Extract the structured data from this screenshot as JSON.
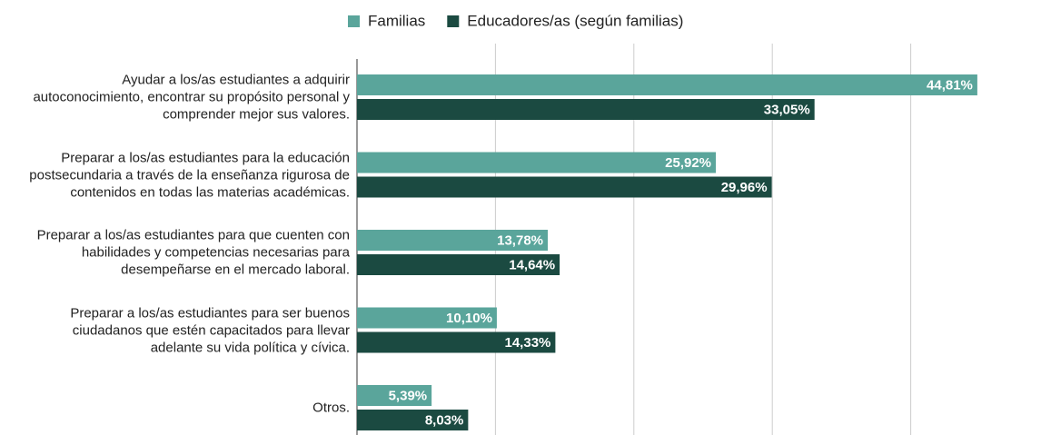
{
  "chart_data": {
    "type": "bar",
    "orientation": "horizontal",
    "categories": [
      "Ayudar a los/as estudiantes a adquirir\nautoconocimiento, encontrar su propósito personal y\ncomprender mejor sus valores.",
      "Preparar a los/as estudiantes para la educación\npostsecundaria a través de la enseñanza rigurosa de\ncontenidos en todas las materias académicas.",
      "Preparar a los/as estudiantes para que cuenten con\nhabilidades y competencias necesarias para\ndesempeñarse en el mercado laboral.",
      "Preparar a los/as estudiantes para ser buenos\nciudadanos que estén capacitados para llevar\nadelante su vida política y cívica.",
      "Otros."
    ],
    "series": [
      {
        "name": "Familias",
        "color": "#5aa59b",
        "values": [
          44.81,
          25.92,
          13.78,
          10.1,
          5.39
        ],
        "value_labels": [
          "44,81%",
          "25,92%",
          "13,78%",
          "10,10%",
          "5,39%"
        ]
      },
      {
        "name": "Educadores/as (según familias)",
        "color": "#1b4a41",
        "values": [
          33.05,
          29.96,
          14.64,
          14.33,
          8.03
        ],
        "value_labels": [
          "33,05%",
          "29,96%",
          "14,64%",
          "14,33%",
          "8,03%"
        ]
      }
    ],
    "xlim": [
      0,
      45
    ],
    "xticks": [
      0,
      10,
      20,
      30,
      40
    ],
    "grid": true,
    "legend": "top"
  }
}
